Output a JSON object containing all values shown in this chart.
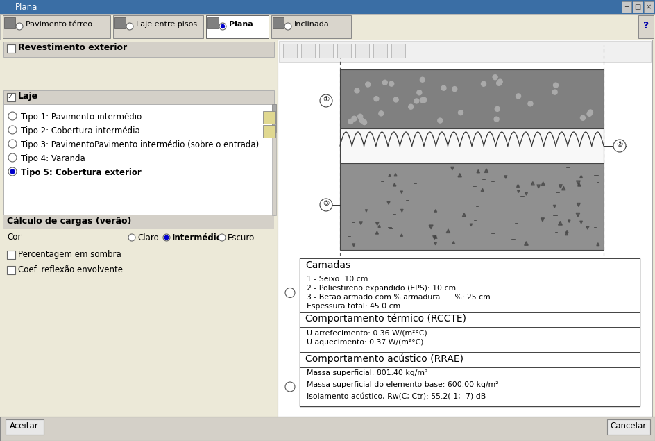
{
  "title": "Plana",
  "bg_outer": "#d4d0c8",
  "bg_main": "#ece9d8",
  "bg_panel": "#f0f0f0",
  "bg_white": "#ffffff",
  "titlebar_bg": "#0a246a",
  "titlebar_active": "#3370d4",
  "tab_bar_bg": "#ece9d8",
  "left_panel_bg": "#ece9d8",
  "right_panel_bg": "#ffffff",
  "section_header_bg": "#d4d0c8",
  "tabs": [
    "Pavimento térreo",
    "Laje entre pisos",
    "Plana",
    "Inclinada"
  ],
  "tab_active": 2,
  "left_section_title": "Revestimento exterior",
  "laje_label": "Laje",
  "radio_options": [
    "Tipo 1: Pavimento intermédio",
    "Tipo 2: Cobertura intermédia",
    "Tipo 3: PavimentoPavimento intermédio (sobre o entrada)",
    "Tipo 4: Varanda",
    "Tipo 5: Cobertura exterior"
  ],
  "radio_selected": 4,
  "calculo_label": "Cálculo de cargas (verão)",
  "cor_label": "Cor",
  "cor_options": [
    "Claro",
    "Intermédio",
    "Escuro"
  ],
  "cor_selected": 1,
  "check_options": [
    "Percentagem em sombra",
    "Coef. reflexão envolvente"
  ],
  "gravel_color": "#808080",
  "eps_color": "#ffffff",
  "concrete_color": "#909090",
  "camadas_title": "Camadas",
  "camadas_lines": [
    "1 - Seixo: 10 cm",
    "2 - Poliestireno expandido (EPS): 10 cm",
    "3 - Betão armado com % armadura      %: 25 cm",
    "Espessura total: 45.0 cm"
  ],
  "termico_title": "Comportamento térmico (RCCTE)",
  "termico_lines": [
    "U arrefecimento: 0.36 W/(m²°C)",
    "U aquecimento: 0.37 W/(m²°C)"
  ],
  "acustico_title": "Comportamento acústico (RRAE)",
  "acustico_lines": [
    "Massa superficial: 801.40 kg/m²",
    "Massa superficial do elemento base: 600.00 kg/m²",
    "Isolamento acústico, Rw(C; Ctr): 55.2(-1; -7) dB"
  ],
  "btn_aceitar": "Aceitar",
  "btn_cancelar": "Cancelar"
}
